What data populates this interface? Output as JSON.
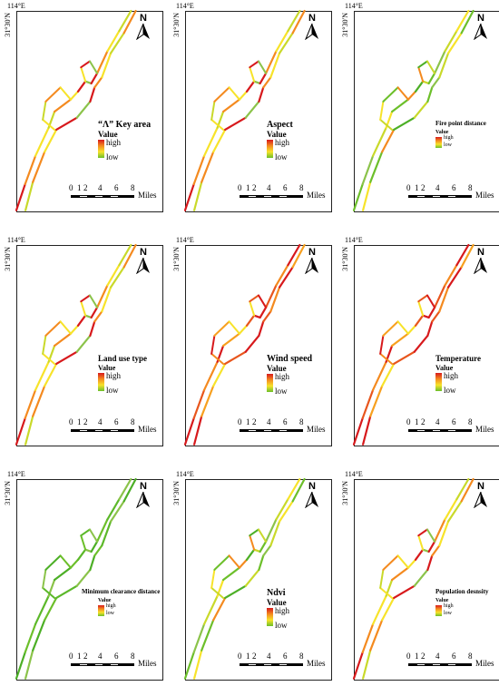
{
  "figure": {
    "panels": [
      {
        "id": "key-area",
        "title": "“Λ” Key area",
        "value_label": "Value",
        "high": "high",
        "low": "low",
        "palette": "mixed"
      },
      {
        "id": "aspect",
        "title": "Aspect",
        "value_label": "Value",
        "high": "high",
        "low": "low",
        "palette": "mixed"
      },
      {
        "id": "fire-point-distance",
        "title": "Fire point distance",
        "value_label": "Value",
        "high": "high",
        "low": "low",
        "palette": "greenish"
      },
      {
        "id": "land-use-type",
        "title": "Land use type",
        "value_label": "Value",
        "high": "high",
        "low": "low",
        "palette": "mixed"
      },
      {
        "id": "wind-speed",
        "title": "Wind speed",
        "value_label": "Value",
        "high": "high",
        "low": "low",
        "palette": "reddish"
      },
      {
        "id": "temperature",
        "title": "Temperature",
        "value_label": "Value",
        "high": "high",
        "low": "low",
        "palette": "reddish"
      },
      {
        "id": "minimum-clearance-distance",
        "title": "Minimum clearance distance",
        "value_label": "Value",
        "high": "high",
        "low": "low",
        "palette": "green"
      },
      {
        "id": "ndvi",
        "title": "Ndvi",
        "value_label": "Value",
        "high": "high",
        "low": "low",
        "palette": "greenish"
      },
      {
        "id": "population-density",
        "title": "Population desnsity",
        "value_label": "Value",
        "high": "high",
        "low": "low",
        "palette": "mixed"
      }
    ],
    "longitude_label": "114°E",
    "latitude_label": "31°30′N",
    "north_label": "N",
    "scale_ticks": [
      "0",
      "1",
      "2",
      "4",
      "6",
      "8"
    ],
    "scale_units": "Miles",
    "colors": {
      "high": "#d7191c",
      "mid_high": "#f48a1f",
      "mid": "#f7e32a",
      "low": "#4caf26",
      "frame": "#222222"
    }
  }
}
